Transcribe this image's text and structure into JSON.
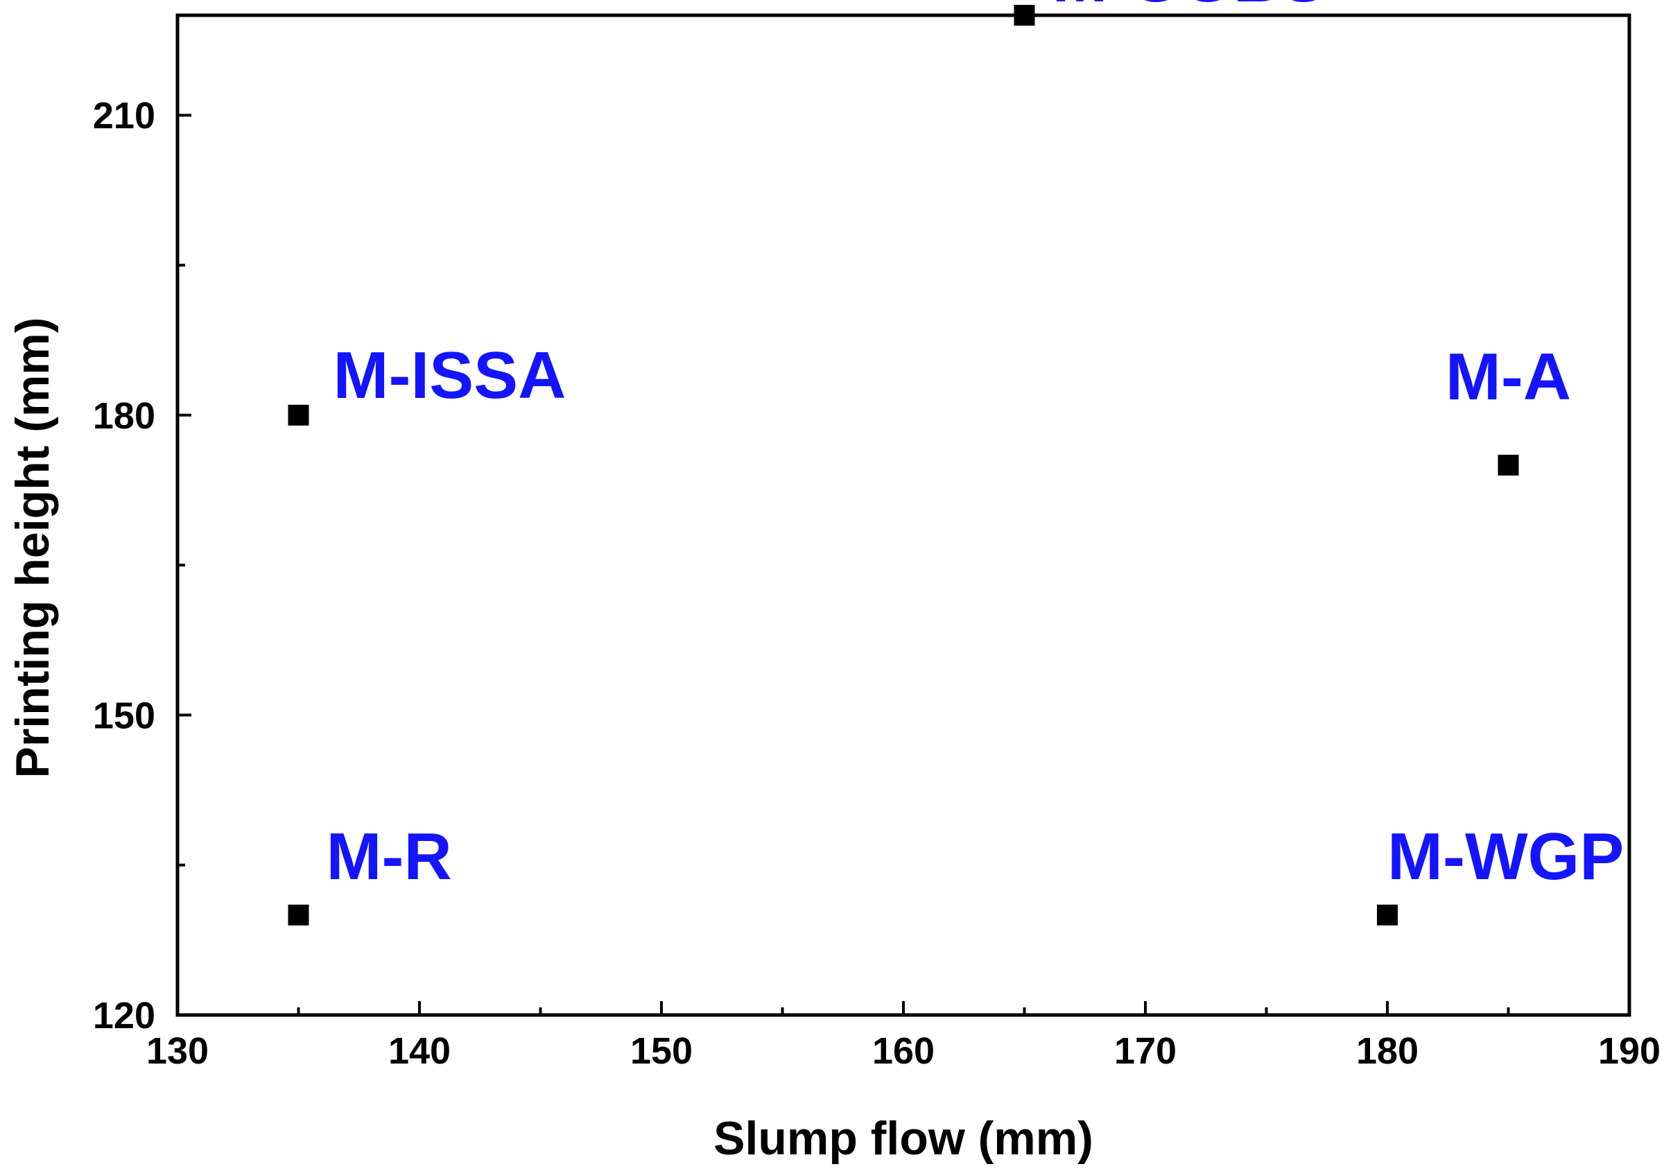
{
  "chart_data": {
    "type": "scatter",
    "title": "",
    "xlabel": "Slump flow (mm)",
    "ylabel": "Printing height (mm)",
    "xlim": [
      130,
      190
    ],
    "ylim": [
      120,
      220
    ],
    "xticks_major": [
      130,
      140,
      150,
      160,
      170,
      180,
      190
    ],
    "xticks_minor": [
      135,
      145,
      155,
      165,
      175,
      185
    ],
    "yticks_major": [
      120,
      150,
      180,
      210
    ],
    "yticks_minor": [
      135,
      165,
      195,
      225
    ],
    "marker": "square",
    "marker_color": "#000000",
    "label_color": "#1414ff",
    "grid": false,
    "points": [
      {
        "label": "M-GGBS",
        "x": 165,
        "y": 220
      },
      {
        "label": "M-ISSA",
        "x": 135,
        "y": 180
      },
      {
        "label": "M-A",
        "x": 185,
        "y": 175
      },
      {
        "label": "M-R",
        "x": 135,
        "y": 130
      },
      {
        "label": "M-WGP",
        "x": 180,
        "y": 130
      }
    ]
  }
}
